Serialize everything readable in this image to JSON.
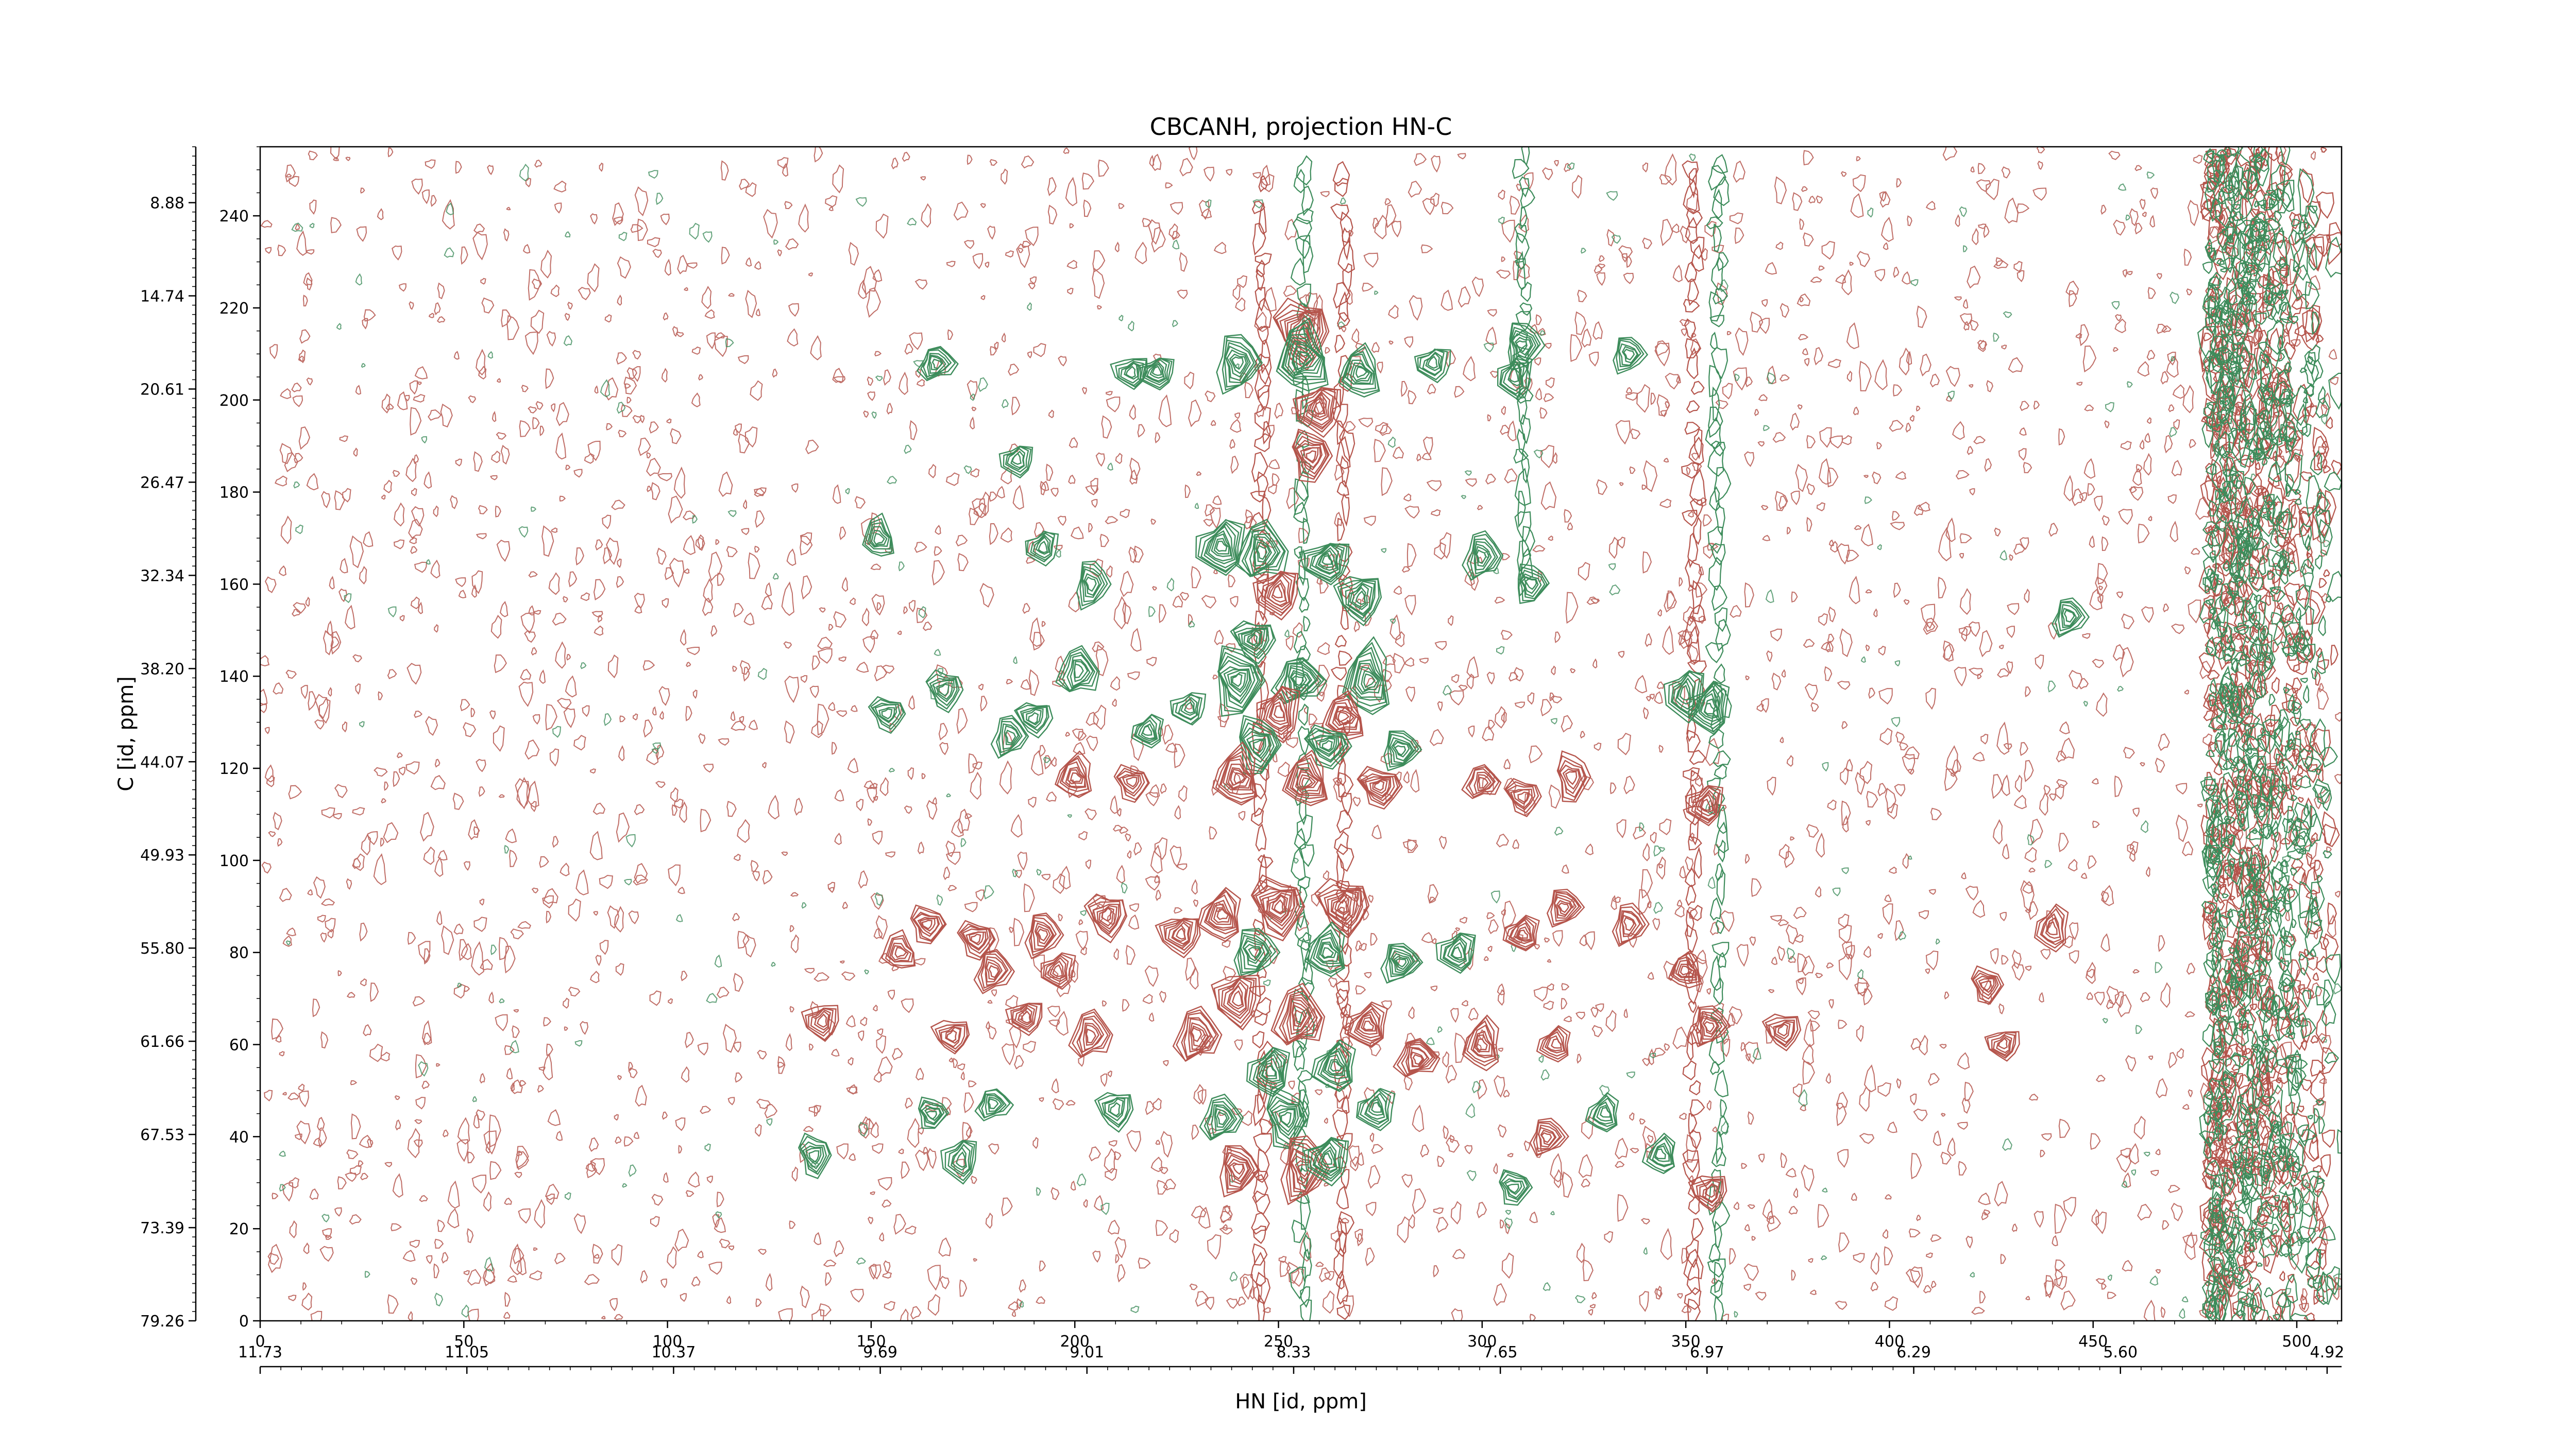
{
  "chart_data": {
    "type": "contour",
    "title": "CBCANH, projection HN-C",
    "xlabel": "HN [id, ppm]",
    "ylabel": "C [id, ppm]",
    "x_points": {
      "ticks": [
        0,
        50,
        100,
        150,
        200,
        250,
        300,
        350,
        400,
        450,
        500
      ],
      "range": [
        0,
        511
      ]
    },
    "x_ppm": {
      "ticks": [
        "11.73",
        "11.05",
        "10.37",
        "9.69",
        "9.01",
        "8.33",
        "7.65",
        "6.97",
        "6.29",
        "5.60",
        "4.92"
      ]
    },
    "y_points": {
      "ticks": [
        0,
        20,
        40,
        60,
        80,
        100,
        120,
        140,
        160,
        180,
        200,
        220,
        240
      ],
      "range": [
        0,
        255
      ]
    },
    "y_ppm": {
      "ticks": [
        "79.26",
        "73.39",
        "67.53",
        "61.66",
        "55.80",
        "49.93",
        "44.07",
        "38.20",
        "32.34",
        "26.47",
        "20.61",
        "14.74",
        "8.88"
      ]
    },
    "colors": {
      "positive": "#b5554c",
      "negative": "#3d8c5b",
      "axis": "#000000",
      "background": "#ffffff"
    },
    "peaks": [
      {
        "x": 256,
        "y": 215,
        "sign": "pos",
        "intensity": 0.75
      },
      {
        "x": 256,
        "y": 209,
        "sign": "neg",
        "intensity": 0.8
      },
      {
        "x": 240,
        "y": 208,
        "sign": "neg",
        "intensity": 0.6
      },
      {
        "x": 270,
        "y": 206,
        "sign": "neg",
        "intensity": 0.55
      },
      {
        "x": 220,
        "y": 206,
        "sign": "neg",
        "intensity": 0.4
      },
      {
        "x": 214,
        "y": 206,
        "sign": "neg",
        "intensity": 0.35
      },
      {
        "x": 166,
        "y": 208,
        "sign": "neg",
        "intensity": 0.4
      },
      {
        "x": 288,
        "y": 208,
        "sign": "neg",
        "intensity": 0.35
      },
      {
        "x": 308,
        "y": 205,
        "sign": "neg",
        "intensity": 0.35
      },
      {
        "x": 310,
        "y": 212,
        "sign": "neg",
        "intensity": 0.45
      },
      {
        "x": 336,
        "y": 210,
        "sign": "neg",
        "intensity": 0.35
      },
      {
        "x": 260,
        "y": 198,
        "sign": "pos",
        "intensity": 0.6
      },
      {
        "x": 258,
        "y": 188,
        "sign": "pos",
        "intensity": 0.5
      },
      {
        "x": 236,
        "y": 168,
        "sign": "neg",
        "intensity": 0.7
      },
      {
        "x": 246,
        "y": 167,
        "sign": "neg",
        "intensity": 0.65
      },
      {
        "x": 262,
        "y": 165,
        "sign": "neg",
        "intensity": 0.65
      },
      {
        "x": 250,
        "y": 158,
        "sign": "pos",
        "intensity": 0.55
      },
      {
        "x": 270,
        "y": 157,
        "sign": "neg",
        "intensity": 0.55
      },
      {
        "x": 244,
        "y": 148,
        "sign": "neg",
        "intensity": 0.5
      },
      {
        "x": 240,
        "y": 139,
        "sign": "neg",
        "intensity": 0.75
      },
      {
        "x": 255,
        "y": 139,
        "sign": "neg",
        "intensity": 0.7
      },
      {
        "x": 272,
        "y": 139,
        "sign": "neg",
        "intensity": 0.7
      },
      {
        "x": 250,
        "y": 132,
        "sign": "pos",
        "intensity": 0.55
      },
      {
        "x": 266,
        "y": 131,
        "sign": "pos",
        "intensity": 0.55
      },
      {
        "x": 245,
        "y": 125,
        "sign": "neg",
        "intensity": 0.6
      },
      {
        "x": 262,
        "y": 125,
        "sign": "neg",
        "intensity": 0.6
      },
      {
        "x": 280,
        "y": 124,
        "sign": "neg",
        "intensity": 0.45
      },
      {
        "x": 240,
        "y": 118,
        "sign": "pos",
        "intensity": 0.65
      },
      {
        "x": 257,
        "y": 117,
        "sign": "pos",
        "intensity": 0.65
      },
      {
        "x": 275,
        "y": 116,
        "sign": "pos",
        "intensity": 0.55
      },
      {
        "x": 200,
        "y": 118,
        "sign": "pos",
        "intensity": 0.45
      },
      {
        "x": 214,
        "y": 117,
        "sign": "pos",
        "intensity": 0.35
      },
      {
        "x": 300,
        "y": 117,
        "sign": "pos",
        "intensity": 0.35
      },
      {
        "x": 310,
        "y": 114,
        "sign": "pos",
        "intensity": 0.35
      },
      {
        "x": 322,
        "y": 118,
        "sign": "pos",
        "intensity": 0.35
      },
      {
        "x": 355,
        "y": 112,
        "sign": "pos",
        "intensity": 0.4
      },
      {
        "x": 356,
        "y": 133,
        "sign": "neg",
        "intensity": 0.5
      },
      {
        "x": 350,
        "y": 136,
        "sign": "neg",
        "intensity": 0.45
      },
      {
        "x": 201,
        "y": 141,
        "sign": "neg",
        "intensity": 0.45
      },
      {
        "x": 190,
        "y": 131,
        "sign": "neg",
        "intensity": 0.35
      },
      {
        "x": 184,
        "y": 127,
        "sign": "neg",
        "intensity": 0.35
      },
      {
        "x": 168,
        "y": 137,
        "sign": "neg",
        "intensity": 0.35
      },
      {
        "x": 154,
        "y": 132,
        "sign": "neg",
        "intensity": 0.35
      },
      {
        "x": 228,
        "y": 133,
        "sign": "neg",
        "intensity": 0.35
      },
      {
        "x": 218,
        "y": 128,
        "sign": "neg",
        "intensity": 0.3
      },
      {
        "x": 300,
        "y": 166,
        "sign": "neg",
        "intensity": 0.4
      },
      {
        "x": 312,
        "y": 160,
        "sign": "neg",
        "intensity": 0.35
      },
      {
        "x": 204,
        "y": 160,
        "sign": "neg",
        "intensity": 0.35
      },
      {
        "x": 192,
        "y": 168,
        "sign": "neg",
        "intensity": 0.3
      },
      {
        "x": 152,
        "y": 170,
        "sign": "neg",
        "intensity": 0.3
      },
      {
        "x": 186,
        "y": 187,
        "sign": "neg",
        "intensity": 0.3
      },
      {
        "x": 444,
        "y": 153,
        "sign": "neg",
        "intensity": 0.35
      },
      {
        "x": 250,
        "y": 90,
        "sign": "pos",
        "intensity": 0.75
      },
      {
        "x": 266,
        "y": 90,
        "sign": "pos",
        "intensity": 0.7
      },
      {
        "x": 236,
        "y": 88,
        "sign": "pos",
        "intensity": 0.6
      },
      {
        "x": 226,
        "y": 84,
        "sign": "pos",
        "intensity": 0.5
      },
      {
        "x": 244,
        "y": 80,
        "sign": "neg",
        "intensity": 0.6
      },
      {
        "x": 262,
        "y": 80,
        "sign": "neg",
        "intensity": 0.55
      },
      {
        "x": 280,
        "y": 78,
        "sign": "neg",
        "intensity": 0.5
      },
      {
        "x": 294,
        "y": 80,
        "sign": "neg",
        "intensity": 0.45
      },
      {
        "x": 208,
        "y": 88,
        "sign": "pos",
        "intensity": 0.45
      },
      {
        "x": 192,
        "y": 84,
        "sign": "pos",
        "intensity": 0.4
      },
      {
        "x": 176,
        "y": 83,
        "sign": "pos",
        "intensity": 0.4
      },
      {
        "x": 164,
        "y": 86,
        "sign": "pos",
        "intensity": 0.4
      },
      {
        "x": 157,
        "y": 80,
        "sign": "pos",
        "intensity": 0.35
      },
      {
        "x": 180,
        "y": 76,
        "sign": "pos",
        "intensity": 0.4
      },
      {
        "x": 196,
        "y": 76,
        "sign": "pos",
        "intensity": 0.35
      },
      {
        "x": 310,
        "y": 84,
        "sign": "pos",
        "intensity": 0.4
      },
      {
        "x": 320,
        "y": 90,
        "sign": "pos",
        "intensity": 0.4
      },
      {
        "x": 336,
        "y": 86,
        "sign": "pos",
        "intensity": 0.35
      },
      {
        "x": 350,
        "y": 76,
        "sign": "pos",
        "intensity": 0.35
      },
      {
        "x": 440,
        "y": 85,
        "sign": "pos",
        "intensity": 0.35
      },
      {
        "x": 424,
        "y": 73,
        "sign": "pos",
        "intensity": 0.3
      },
      {
        "x": 240,
        "y": 70,
        "sign": "pos",
        "intensity": 0.6
      },
      {
        "x": 255,
        "y": 66,
        "sign": "pos",
        "intensity": 0.65
      },
      {
        "x": 272,
        "y": 64,
        "sign": "pos",
        "intensity": 0.55
      },
      {
        "x": 230,
        "y": 62,
        "sign": "pos",
        "intensity": 0.55
      },
      {
        "x": 264,
        "y": 55,
        "sign": "neg",
        "intensity": 0.6
      },
      {
        "x": 248,
        "y": 54,
        "sign": "neg",
        "intensity": 0.55
      },
      {
        "x": 284,
        "y": 57,
        "sign": "pos",
        "intensity": 0.5
      },
      {
        "x": 300,
        "y": 60,
        "sign": "pos",
        "intensity": 0.45
      },
      {
        "x": 204,
        "y": 62,
        "sign": "pos",
        "intensity": 0.45
      },
      {
        "x": 188,
        "y": 66,
        "sign": "pos",
        "intensity": 0.35
      },
      {
        "x": 170,
        "y": 62,
        "sign": "pos",
        "intensity": 0.35
      },
      {
        "x": 138,
        "y": 65,
        "sign": "pos",
        "intensity": 0.35
      },
      {
        "x": 318,
        "y": 60,
        "sign": "pos",
        "intensity": 0.35
      },
      {
        "x": 356,
        "y": 64,
        "sign": "pos",
        "intensity": 0.4
      },
      {
        "x": 374,
        "y": 63,
        "sign": "pos",
        "intensity": 0.35
      },
      {
        "x": 428,
        "y": 60,
        "sign": "pos",
        "intensity": 0.3
      },
      {
        "x": 252,
        "y": 44,
        "sign": "neg",
        "intensity": 0.55
      },
      {
        "x": 236,
        "y": 44,
        "sign": "neg",
        "intensity": 0.45
      },
      {
        "x": 274,
        "y": 46,
        "sign": "neg",
        "intensity": 0.45
      },
      {
        "x": 210,
        "y": 46,
        "sign": "neg",
        "intensity": 0.35
      },
      {
        "x": 180,
        "y": 47,
        "sign": "neg",
        "intensity": 0.35
      },
      {
        "x": 165,
        "y": 45,
        "sign": "neg",
        "intensity": 0.3
      },
      {
        "x": 316,
        "y": 40,
        "sign": "pos",
        "intensity": 0.4
      },
      {
        "x": 330,
        "y": 45,
        "sign": "neg",
        "intensity": 0.35
      },
      {
        "x": 344,
        "y": 36,
        "sign": "neg",
        "intensity": 0.35
      },
      {
        "x": 256,
        "y": 33,
        "sign": "pos",
        "intensity": 0.65
      },
      {
        "x": 240,
        "y": 33,
        "sign": "pos",
        "intensity": 0.5
      },
      {
        "x": 262,
        "y": 35,
        "sign": "neg",
        "intensity": 0.55
      },
      {
        "x": 172,
        "y": 35,
        "sign": "neg",
        "intensity": 0.35
      },
      {
        "x": 136,
        "y": 36,
        "sign": "neg",
        "intensity": 0.3
      },
      {
        "x": 308,
        "y": 29,
        "sign": "neg",
        "intensity": 0.35
      },
      {
        "x": 356,
        "y": 28,
        "sign": "pos",
        "intensity": 0.35
      }
    ],
    "vertical_streaks": [
      {
        "x": 246,
        "sign": "pos",
        "range": [
          2,
          250
        ]
      },
      {
        "x": 256,
        "sign": "neg",
        "range": [
          2,
          250
        ]
      },
      {
        "x": 266,
        "sign": "pos",
        "range": [
          2,
          250
        ]
      },
      {
        "x": 352,
        "sign": "pos",
        "range": [
          2,
          252
        ]
      },
      {
        "x": 358,
        "sign": "neg",
        "range": [
          2,
          252
        ]
      },
      {
        "x": 310,
        "sign": "neg",
        "range": [
          160,
          254
        ]
      }
    ],
    "edge_band": {
      "x_range": [
        478,
        511
      ],
      "sign": "mixed"
    }
  }
}
